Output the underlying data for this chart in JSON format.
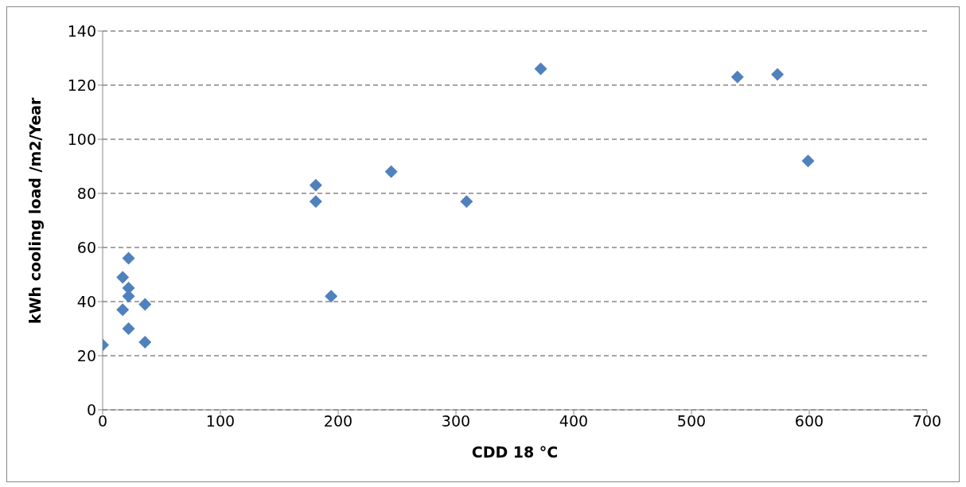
{
  "chart_data": {
    "type": "scatter",
    "xlabel": "CDD 18 °C",
    "ylabel": "kWh cooling load /m2/Year",
    "x": [
      0,
      17,
      17,
      22,
      22,
      22,
      22,
      36,
      36,
      181,
      181,
      194,
      245,
      309,
      372,
      539,
      573,
      599
    ],
    "series": [
      {
        "color": "#4f81bd",
        "values": [
          24,
          49,
          37,
          56,
          45,
          42,
          30,
          39,
          25,
          83,
          77,
          42,
          88,
          77,
          126,
          123,
          124,
          92
        ]
      }
    ],
    "marker": "diamond",
    "xlim": [
      0,
      700
    ],
    "xticks": [
      0,
      100,
      200,
      300,
      400,
      500,
      600,
      700
    ],
    "ylim": [
      0,
      140
    ],
    "yticks": [
      0,
      20,
      40,
      60,
      80,
      100,
      120,
      140
    ],
    "grid": "y",
    "legend": false
  }
}
